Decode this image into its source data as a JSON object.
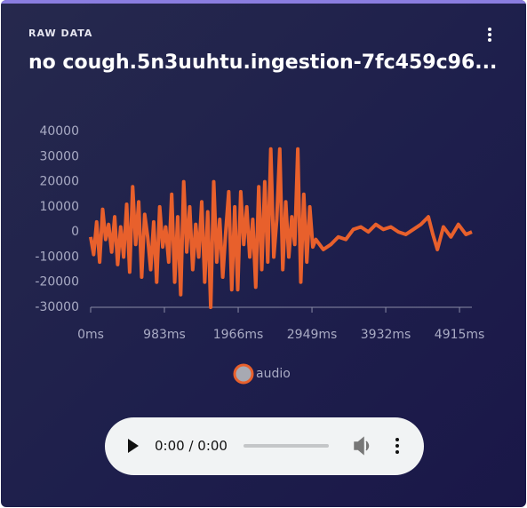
{
  "header": {
    "label": "RAW DATA",
    "title": "no cough.5n3uuhtu.ingestion-7fc459c96..."
  },
  "chart_data": {
    "type": "line",
    "x": [
      0,
      40,
      80,
      120,
      160,
      200,
      240,
      280,
      320,
      360,
      400,
      440,
      480,
      520,
      560,
      600,
      640,
      680,
      720,
      760,
      800,
      840,
      880,
      920,
      960,
      1000,
      1040,
      1080,
      1120,
      1160,
      1200,
      1240,
      1280,
      1320,
      1360,
      1400,
      1440,
      1480,
      1520,
      1560,
      1600,
      1640,
      1680,
      1720,
      1760,
      1800,
      1840,
      1880,
      1920,
      1960,
      2000,
      2040,
      2080,
      2120,
      2160,
      2200,
      2240,
      2280,
      2320,
      2360,
      2400,
      2440,
      2480,
      2520,
      2560,
      2600,
      2640,
      2680,
      2720,
      2760,
      2800,
      2840,
      2880,
      2920,
      2960,
      3000,
      3100,
      3200,
      3300,
      3400,
      3500,
      3600,
      3700,
      3800,
      3900,
      4000,
      4100,
      4200,
      4300,
      4400,
      4500,
      4560,
      4620,
      4700,
      4800,
      4900,
      5000,
      5080
    ],
    "series": [
      {
        "name": "audio",
        "color": "#e8602c",
        "values": [
          -2000,
          -9000,
          4000,
          -12000,
          9000,
          -3000,
          3000,
          -8000,
          6000,
          -13000,
          2000,
          -10000,
          11000,
          -16000,
          18000,
          -5000,
          12000,
          -18000,
          7000,
          -2000,
          -15000,
          4000,
          -20000,
          10000,
          -6000,
          2000,
          -12000,
          15000,
          -20000,
          6000,
          -25000,
          20000,
          -8000,
          10000,
          -15000,
          3000,
          -10000,
          12000,
          -20000,
          8000,
          -30000,
          20000,
          -12000,
          5000,
          -18000,
          0,
          16000,
          -23000,
          10000,
          -23000,
          16000,
          -5000,
          10000,
          -10000,
          5000,
          -22000,
          18000,
          -15000,
          20000,
          -12000,
          33000,
          -10000,
          5000,
          33000,
          -15000,
          12000,
          -10000,
          6000,
          -5000,
          33000,
          -20000,
          15000,
          -12000,
          10000,
          -6000,
          -3000,
          -7000,
          -5000,
          -2000,
          -3000,
          1000,
          2000,
          0,
          3000,
          1000,
          2000,
          0,
          -1000,
          1000,
          3000,
          6000,
          -1000,
          -7000,
          2000,
          -2000,
          3000,
          -1000,
          0
        ]
      }
    ],
    "xlim": [
      0,
      5080
    ],
    "ylim": [
      -30000,
      40000
    ],
    "xticks": [
      {
        "value": 0,
        "label": "0ms"
      },
      {
        "value": 983,
        "label": "983ms"
      },
      {
        "value": 1966,
        "label": "1966ms"
      },
      {
        "value": 2949,
        "label": "2949ms"
      },
      {
        "value": 3932,
        "label": "3932ms"
      },
      {
        "value": 4915,
        "label": "4915ms"
      }
    ],
    "yticks": [
      -30000,
      -20000,
      -10000,
      0,
      10000,
      20000,
      30000,
      40000
    ],
    "grid": false,
    "legend": "bottom"
  },
  "player": {
    "time": "0:00 / 0:00"
  }
}
